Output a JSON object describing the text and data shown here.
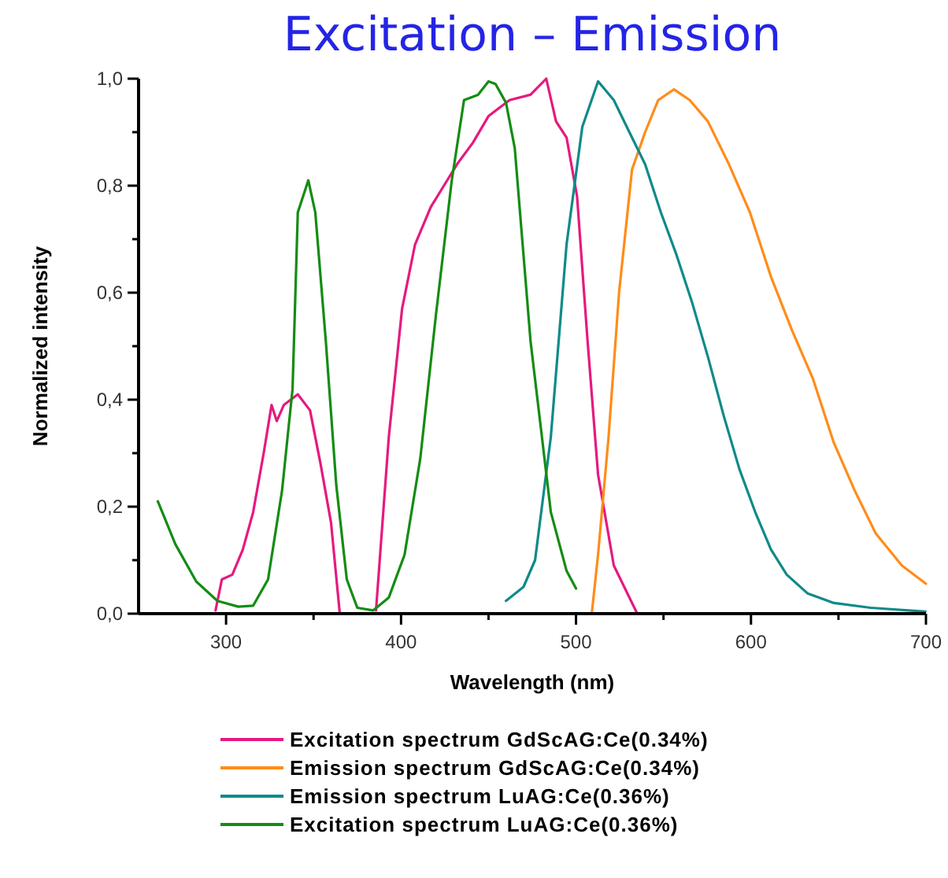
{
  "chart_data": {
    "type": "line",
    "title": "Excitation – Emission",
    "xlabel": "Wavelength (nm)",
    "ylabel": "Normalized intensity",
    "xlim": [
      250,
      700
    ],
    "ylim": [
      0,
      1
    ],
    "xticks": [
      300,
      {
        "value": 350,
        "label": null
      },
      400,
      {
        "value": 450,
        "label": null
      },
      500,
      {
        "value": 550,
        "label": null
      },
      600,
      {
        "value": 650,
        "label": null
      },
      700
    ],
    "yticks": [
      {
        "value": 0,
        "label": "0,0"
      },
      {
        "value": 0.1,
        "label": null
      },
      {
        "value": 0.2,
        "label": "0,2"
      },
      {
        "value": 0.3,
        "label": null
      },
      {
        "value": 0.4,
        "label": "0,4"
      },
      {
        "value": 0.5,
        "label": null
      },
      {
        "value": 0.6,
        "label": "0,6"
      },
      {
        "value": 0.7,
        "label": null
      },
      {
        "value": 0.8,
        "label": "0,8"
      },
      {
        "value": 0.9,
        "label": null
      },
      {
        "value": 1,
        "label": "1,0"
      }
    ],
    "grid": false,
    "legend": "bottom",
    "line_style": "solid",
    "marker": "none",
    "series": [
      {
        "name": "Excitation spectrum GdScAG:Ce(0.34%)",
        "color": "#e6197f",
        "x": [
          294,
          297.6,
          303.6,
          309.6,
          315.5,
          321.5,
          326,
          329,
          333,
          341,
          348,
          354,
          360,
          365,
          375,
          385.7,
          393,
          400.6,
          408,
          417,
          424.5,
          432,
          441,
          450,
          462,
          474,
          483,
          488.6,
          494.6,
          500.6,
          506.6,
          512.6,
          521.6,
          535
        ],
        "values": [
          0.006,
          0.064,
          0.073,
          0.12,
          0.19,
          0.3,
          0.39,
          0.36,
          0.39,
          0.41,
          0.38,
          0.28,
          0.17,
          0,
          null,
          0.006,
          0.33,
          0.57,
          0.69,
          0.76,
          0.8,
          0.84,
          0.88,
          0.93,
          0.96,
          0.97,
          1.0,
          0.92,
          0.89,
          0.78,
          0.51,
          0.26,
          0.09,
          0
        ]
      },
      {
        "name": "Emission spectrum GdScAG:Ce(0.34%)",
        "color": "#ff8c1a",
        "x": [
          509,
          512.6,
          518.6,
          524.6,
          532,
          539.5,
          547,
          556,
          565,
          575.4,
          587.4,
          599.4,
          611.4,
          623.4,
          635.3,
          647.3,
          659.3,
          671.3,
          686.2,
          700
        ],
        "values": [
          0,
          0.11,
          0.33,
          0.6,
          0.83,
          0.9,
          0.96,
          0.98,
          0.96,
          0.92,
          0.84,
          0.75,
          0.63,
          0.53,
          0.44,
          0.32,
          0.23,
          0.15,
          0.09,
          0.056
        ]
      },
      {
        "name": "Emission spectrum LuAG:Ce(0.36%)",
        "color": "#0f8a8a",
        "x": [
          460,
          470,
          476.6,
          485.6,
          494.6,
          503.6,
          512.6,
          521.6,
          530.5,
          539.5,
          548.5,
          557.5,
          566.5,
          575.4,
          584.4,
          593.4,
          602.4,
          611.4,
          620.4,
          632.3,
          647.3,
          668.3,
          699.7
        ],
        "values": [
          0.024,
          0.05,
          0.1,
          0.33,
          0.69,
          0.91,
          0.995,
          0.96,
          0.9,
          0.84,
          0.75,
          0.67,
          0.58,
          0.48,
          0.37,
          0.27,
          0.19,
          0.12,
          0.073,
          0.038,
          0.02,
          0.011,
          0.004
        ]
      },
      {
        "name": "Excitation spectrum LuAG:Ce(0.36%)",
        "color": "#148c14",
        "x": [
          261,
          271,
          283,
          295,
          307,
          315.5,
          324,
          332,
          338,
          341,
          347,
          351,
          357,
          363,
          369,
          375,
          384,
          393,
          402,
          411,
          420,
          429,
          436,
          444,
          450,
          454,
          460,
          465,
          474,
          485.6,
          494.6,
          500
        ],
        "values": [
          0.21,
          0.13,
          0.06,
          0.024,
          0.013,
          0.015,
          0.064,
          0.23,
          0.42,
          0.75,
          0.81,
          0.75,
          0.51,
          0.24,
          0.064,
          0.011,
          0.006,
          0.03,
          0.11,
          0.29,
          0.56,
          0.81,
          0.96,
          0.97,
          0.995,
          0.99,
          0.955,
          0.87,
          0.51,
          0.19,
          0.08,
          0.047
        ]
      }
    ]
  }
}
